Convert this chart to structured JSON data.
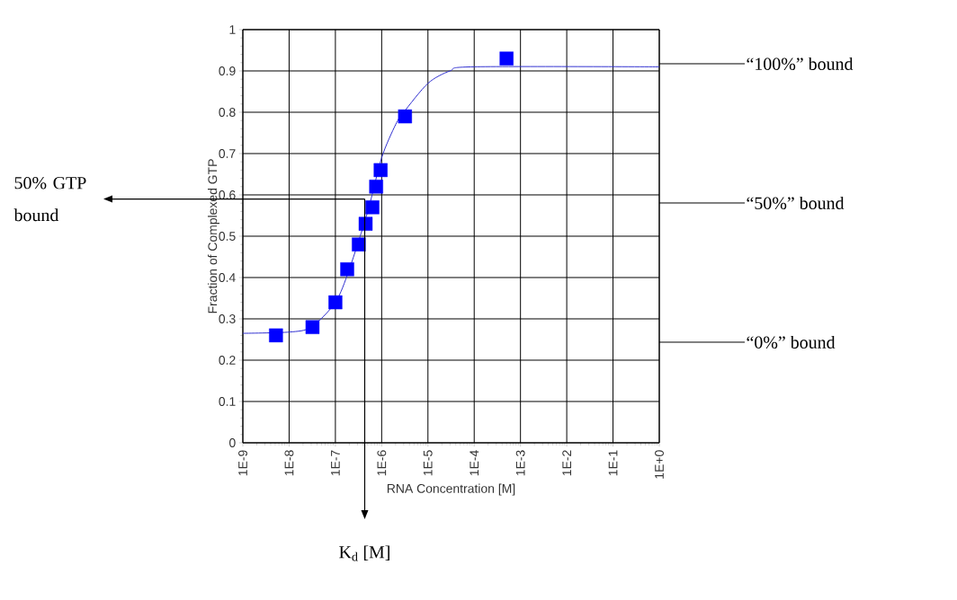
{
  "chart_data": {
    "type": "scatter",
    "xlabel": "RNA Concentration [M]",
    "ylabel": "Fraction of Complexed GTP",
    "log": "x",
    "grid": true,
    "xlim": [
      1e-09,
      1
    ],
    "ylim": [
      0,
      1
    ],
    "xticks": [
      {
        "value": 1e-09,
        "label": "1E-9"
      },
      {
        "value": 1e-08,
        "label": "1E-8"
      },
      {
        "value": 1e-07,
        "label": "1E-7"
      },
      {
        "value": 1e-06,
        "label": "1E-6"
      },
      {
        "value": 1e-05,
        "label": "1E-5"
      },
      {
        "value": 0.0001,
        "label": "1E-4"
      },
      {
        "value": 0.001,
        "label": "1E-3"
      },
      {
        "value": 0.01,
        "label": "1E-2"
      },
      {
        "value": 0.1,
        "label": "1E-1"
      },
      {
        "value": 1,
        "label": "1E+0"
      }
    ],
    "yticks": [
      0,
      0.1,
      0.2,
      0.3,
      0.4,
      0.5,
      0.6,
      0.7,
      0.8,
      0.9,
      1
    ],
    "series": [
      {
        "marker": "square",
        "color": "#0000ff",
        "x": [
          5.2e-09,
          3.2e-08,
          1e-07,
          1.8e-07,
          3.2e-07,
          4.5e-07,
          6.3e-07,
          7.6e-07,
          9.5e-07,
          3.2e-06,
          0.0005
        ],
        "values": [
          0.26,
          0.28,
          0.34,
          0.42,
          0.48,
          0.53,
          0.57,
          0.62,
          0.66,
          0.79,
          0.93
        ]
      },
      {
        "type": "line",
        "marker": "none",
        "color": "#3030d0",
        "x": [
          1e-09,
          1e-08,
          3e-08,
          1e-07,
          2e-07,
          5e-07,
          1e-06,
          2e-06,
          3e-06,
          1e-05,
          3e-05,
          0.0001,
          1
        ],
        "values": [
          0.265,
          0.268,
          0.28,
          0.34,
          0.42,
          0.56,
          0.69,
          0.77,
          0.8,
          0.87,
          0.9,
          0.91,
          0.91
        ]
      }
    ],
    "ref_lines": [
      {
        "axis": "y",
        "value": 0.59,
        "label": "50% GTP bound",
        "color": "#000000"
      },
      {
        "axis": "x",
        "value": 4.3e-07,
        "label": "K$_{d}$ [M]",
        "color": "#000000"
      }
    ],
    "annotations": [
      "“100%” bound",
      "“50%” bound",
      "“0%” bound"
    ]
  }
}
